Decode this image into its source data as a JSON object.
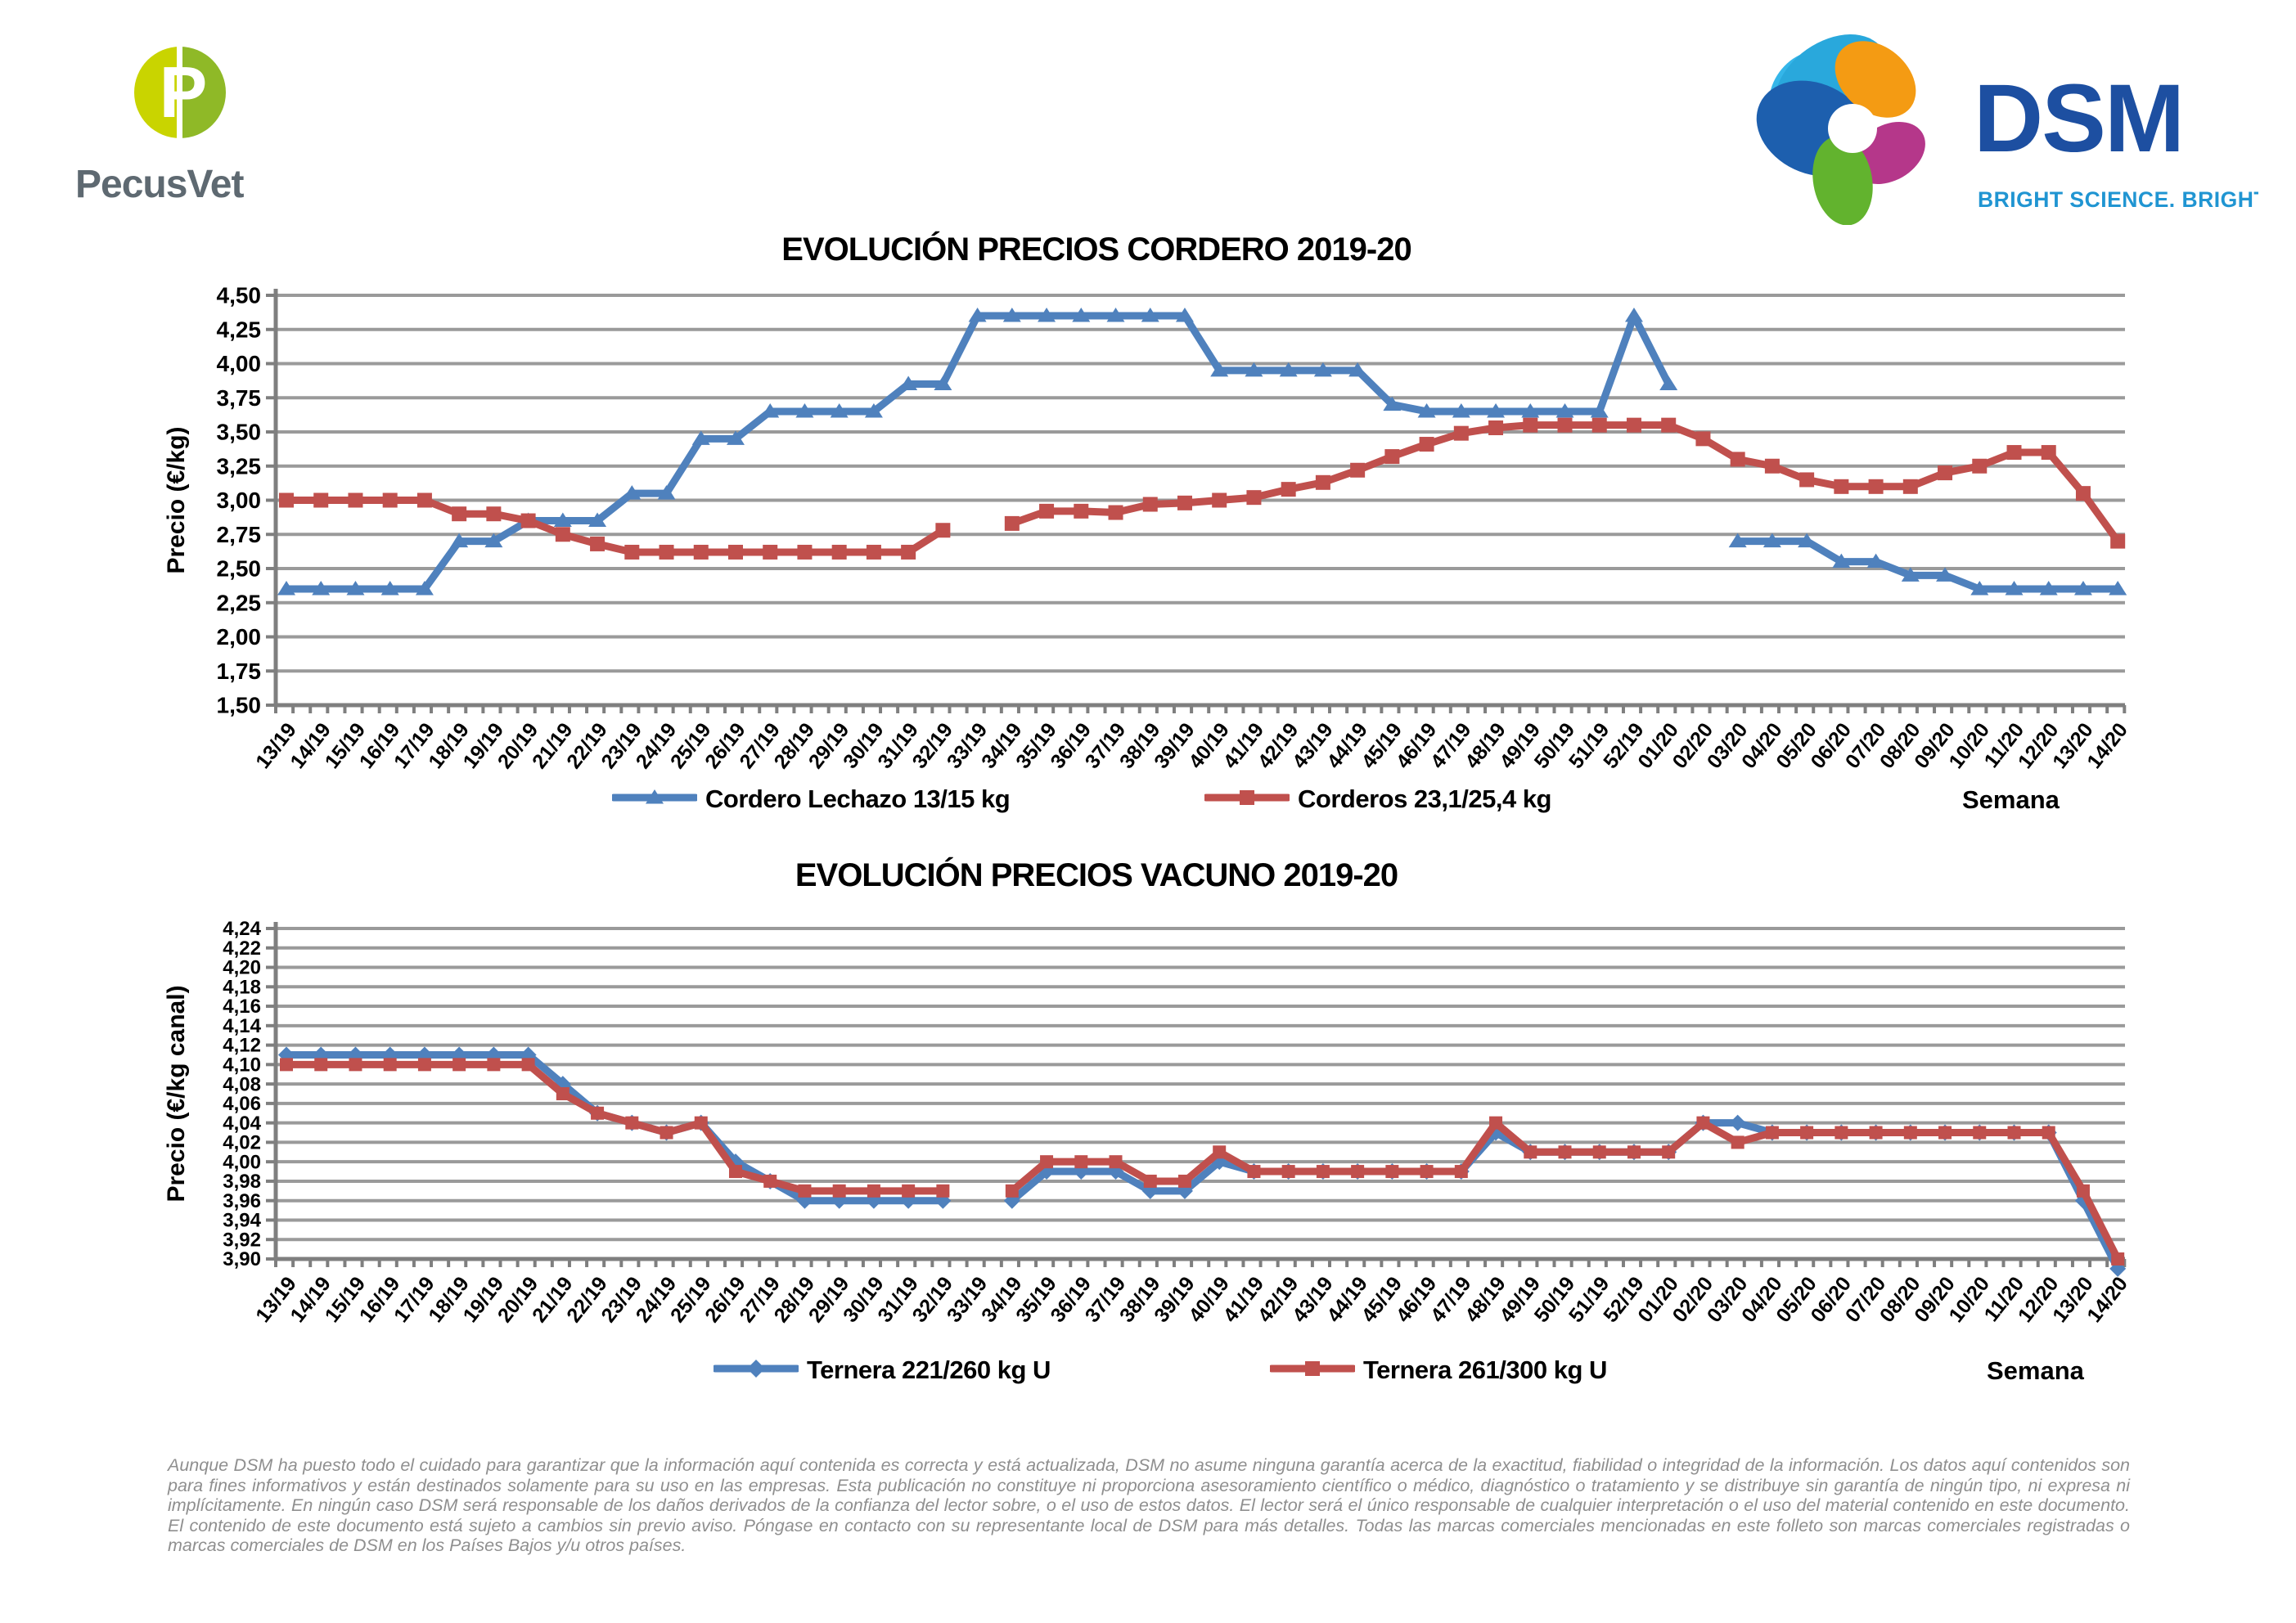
{
  "header": {
    "pecusvet": {
      "wordmark": "PecusVet",
      "monogram": "P",
      "text_color": "#5e6971",
      "circle_left_color": "#c9d400",
      "circle_right_color": "#8fb927"
    },
    "dsm": {
      "wordmark": "DSM",
      "tagline": "BRIGHT SCIENCE. BRIGHTER LIVING.",
      "wordmark_color": "#1d4fa1",
      "tagline_color": "#2095d2"
    }
  },
  "chart_data": [
    {
      "type": "line",
      "title": "EVOLUCIÓN PRECIOS CORDERO 2019-20",
      "ylabel": "Precio (€/kg)",
      "xlabel": "Semana",
      "ylim": [
        1.5,
        4.5
      ],
      "ytick_step": 0.25,
      "grid": true,
      "legend_position": "bottom",
      "grid_color": "#9a9a9a",
      "axis_color": "#7f7f7f",
      "categories": [
        "13/19",
        "14/19",
        "15/19",
        "16/19",
        "17/19",
        "18/19",
        "19/19",
        "20/19",
        "21/19",
        "22/19",
        "23/19",
        "24/19",
        "25/19",
        "26/19",
        "27/19",
        "28/19",
        "29/19",
        "30/19",
        "31/19",
        "32/19",
        "33/19",
        "34/19",
        "35/19",
        "36/19",
        "37/19",
        "38/19",
        "39/19",
        "40/19",
        "41/19",
        "42/19",
        "43/19",
        "44/19",
        "45/19",
        "46/19",
        "47/19",
        "48/19",
        "49/19",
        "50/19",
        "51/19",
        "52/19",
        "01/20",
        "02/20",
        "03/20",
        "04/20",
        "05/20",
        "06/20",
        "07/20",
        "08/20",
        "09/20",
        "10/20",
        "11/20",
        "12/20",
        "13/20",
        "14/20"
      ],
      "series": [
        {
          "name": "Cordero Lechazo 13/15 kg",
          "color": "#4F81BD",
          "marker": "triangle",
          "values": [
            2.35,
            2.35,
            2.35,
            2.35,
            2.35,
            2.7,
            2.7,
            2.85,
            2.85,
            2.85,
            3.05,
            3.05,
            3.45,
            3.45,
            3.65,
            3.65,
            3.65,
            3.65,
            3.85,
            3.85,
            4.35,
            4.35,
            4.35,
            4.35,
            4.35,
            4.35,
            4.35,
            3.95,
            3.95,
            3.95,
            3.95,
            3.95,
            3.7,
            3.65,
            3.65,
            3.65,
            3.65,
            3.65,
            3.65,
            4.35,
            3.85,
            null,
            2.7,
            2.7,
            2.7,
            2.55,
            2.55,
            2.45,
            2.45,
            2.35,
            2.35,
            2.35,
            2.35,
            2.35
          ]
        },
        {
          "name": "Corderos 23,1/25,4 kg",
          "color": "#C0504D",
          "marker": "square",
          "values": [
            3.0,
            3.0,
            3.0,
            3.0,
            3.0,
            2.9,
            2.9,
            2.85,
            2.75,
            2.68,
            2.62,
            2.62,
            2.62,
            2.62,
            2.62,
            2.62,
            2.62,
            2.62,
            2.62,
            2.78,
            null,
            2.83,
            2.92,
            2.92,
            2.91,
            2.97,
            2.98,
            3.0,
            3.02,
            3.08,
            3.13,
            3.22,
            3.32,
            3.41,
            3.49,
            3.53,
            3.55,
            3.55,
            3.55,
            3.55,
            3.55,
            3.45,
            3.3,
            3.25,
            3.15,
            3.1,
            3.1,
            3.1,
            3.2,
            3.25,
            3.35,
            3.35,
            3.05,
            2.7
          ]
        }
      ]
    },
    {
      "type": "line",
      "title": "EVOLUCIÓN PRECIOS VACUNO 2019-20",
      "ylabel": "Precio (€/kg canal)",
      "xlabel": "Semana",
      "ylim": [
        3.9,
        4.24
      ],
      "ytick_step": 0.02,
      "grid": true,
      "legend_position": "bottom",
      "grid_color": "#9a9a9a",
      "axis_color": "#7f7f7f",
      "categories": [
        "13/19",
        "14/19",
        "15/19",
        "16/19",
        "17/19",
        "18/19",
        "19/19",
        "20/19",
        "21/19",
        "22/19",
        "23/19",
        "24/19",
        "25/19",
        "26/19",
        "27/19",
        "28/19",
        "29/19",
        "30/19",
        "31/19",
        "32/19",
        "33/19",
        "34/19",
        "35/19",
        "36/19",
        "37/19",
        "38/19",
        "39/19",
        "40/19",
        "41/19",
        "42/19",
        "43/19",
        "44/19",
        "45/19",
        "46/19",
        "47/19",
        "48/19",
        "49/19",
        "50/19",
        "51/19",
        "52/19",
        "01/20",
        "02/20",
        "03/20",
        "04/20",
        "05/20",
        "06/20",
        "07/20",
        "08/20",
        "09/20",
        "10/20",
        "11/20",
        "12/20",
        "13/20",
        "14/20"
      ],
      "series": [
        {
          "name": "Ternera 221/260 kg U",
          "color": "#4F81BD",
          "marker": "diamond",
          "values": [
            4.11,
            4.11,
            4.11,
            4.11,
            4.11,
            4.11,
            4.11,
            4.11,
            4.08,
            4.05,
            4.04,
            4.03,
            4.04,
            4.0,
            3.98,
            3.96,
            3.96,
            3.96,
            3.96,
            3.96,
            null,
            3.96,
            3.99,
            3.99,
            3.99,
            3.97,
            3.97,
            4.0,
            3.99,
            3.99,
            3.99,
            3.99,
            3.99,
            3.99,
            3.99,
            4.03,
            4.01,
            4.01,
            4.01,
            4.01,
            4.01,
            4.04,
            4.04,
            4.03,
            4.03,
            4.03,
            4.03,
            4.03,
            4.03,
            4.03,
            4.03,
            4.03,
            3.96,
            3.89
          ]
        },
        {
          "name": "Ternera 261/300 kg U",
          "color": "#C0504D",
          "marker": "square",
          "values": [
            4.1,
            4.1,
            4.1,
            4.1,
            4.1,
            4.1,
            4.1,
            4.1,
            4.07,
            4.05,
            4.04,
            4.03,
            4.04,
            3.99,
            3.98,
            3.97,
            3.97,
            3.97,
            3.97,
            3.97,
            null,
            3.97,
            4.0,
            4.0,
            4.0,
            3.98,
            3.98,
            4.01,
            3.99,
            3.99,
            3.99,
            3.99,
            3.99,
            3.99,
            3.99,
            4.04,
            4.01,
            4.01,
            4.01,
            4.01,
            4.01,
            4.04,
            4.02,
            4.03,
            4.03,
            4.03,
            4.03,
            4.03,
            4.03,
            4.03,
            4.03,
            4.03,
            3.97,
            3.9
          ]
        }
      ]
    }
  ],
  "footer": {
    "disclaimer": "Aunque DSM ha puesto todo el cuidado para garantizar que la información aquí contenida es correcta y está actualizada, DSM no asume ninguna garantía acerca de la exactitud, fiabilidad o integridad de la información. Los datos aquí contenidos son para fines informativos y están destinados solamente para su uso en las empresas. Esta publicación no constituye ni proporciona asesoramiento científico o médico, diagnóstico o tratamiento y se distribuye sin garantía de ningún tipo, ni expresa ni implícitamente. En ningún caso DSM será responsable de los daños derivados de la confianza del lector sobre, o el uso de estos datos. El lector será el único responsable de cualquier interpretación o el uso del material contenido en este documento. El contenido de este documento está sujeto a cambios sin previo aviso. Póngase en contacto con su representante local de DSM para más detalles. Todas las marcas comerciales mencionadas en este folleto son marcas comerciales registradas o marcas comerciales de DSM en los Países Bajos y/u otros países."
  }
}
